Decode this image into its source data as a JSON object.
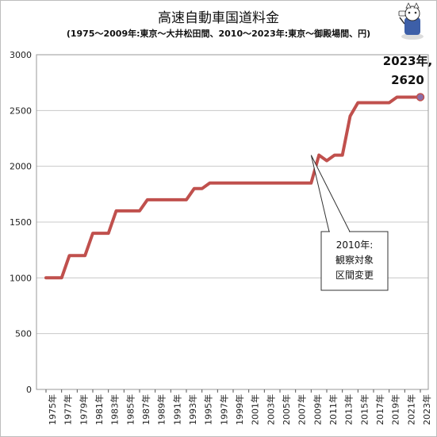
{
  "chart_data": {
    "type": "line",
    "title": "高速自動車国道料金",
    "subtitle": "(1975〜2009年:東京〜大井松田間、2010〜2023年:東京〜御殿場間、円)",
    "xlabel": "",
    "ylabel": "",
    "ylim": [
      0,
      3000
    ],
    "yticks": [
      0,
      500,
      1000,
      1500,
      2000,
      2500,
      3000
    ],
    "grid": "horizontal",
    "legend": "none",
    "series_color": "#c0504d",
    "x": [
      1975,
      1976,
      1977,
      1978,
      1979,
      1980,
      1981,
      1982,
      1983,
      1984,
      1985,
      1986,
      1987,
      1988,
      1989,
      1990,
      1991,
      1992,
      1993,
      1994,
      1995,
      1996,
      1997,
      1998,
      1999,
      2000,
      2001,
      2002,
      2003,
      2004,
      2005,
      2006,
      2007,
      2008,
      2009,
      2010,
      2011,
      2012,
      2013,
      2014,
      2015,
      2016,
      2017,
      2018,
      2019,
      2020,
      2021,
      2022,
      2023
    ],
    "x_tick_labels": [
      "1975年",
      "1977年",
      "1979年",
      "1981年",
      "1983年",
      "1985年",
      "1987年",
      "1989年",
      "1991年",
      "1993年",
      "1995年",
      "1997年",
      "1999年",
      "2001年",
      "2003年",
      "2005年",
      "2007年",
      "2009年",
      "2011年",
      "2013年",
      "2015年",
      "2017年",
      "2019年",
      "2021年",
      "2023年"
    ],
    "values": [
      1000,
      1000,
      1000,
      1200,
      1200,
      1200,
      1400,
      1400,
      1400,
      1600,
      1600,
      1600,
      1600,
      1700,
      1700,
      1700,
      1700,
      1700,
      1700,
      1800,
      1800,
      1850,
      1850,
      1850,
      1850,
      1850,
      1850,
      1850,
      1850,
      1850,
      1850,
      1850,
      1850,
      1850,
      1850,
      2100,
      2050,
      2100,
      2100,
      2450,
      2570,
      2570,
      2570,
      2570,
      2570,
      2620,
      2620,
      2620,
      2620
    ],
    "annotations": [
      {
        "x": 2009,
        "y": 2100,
        "lines": [
          "2010年:",
          "観察対象",
          "区間変更"
        ]
      },
      {
        "x": 2023,
        "y": 2620,
        "lines": [
          "2023年,",
          "2620"
        ]
      }
    ]
  }
}
